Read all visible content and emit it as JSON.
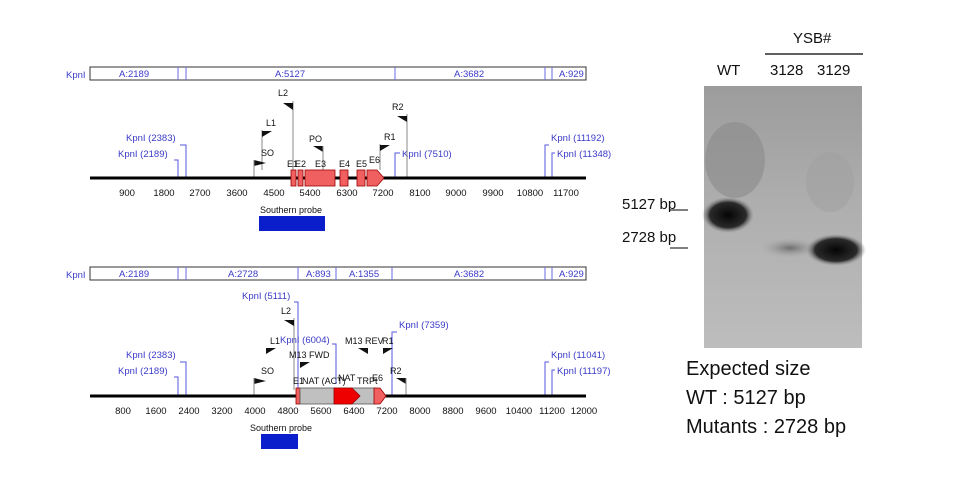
{
  "map1": {
    "restriction_bar": {
      "left_label": "KpnI",
      "segments": [
        "A:2189",
        "A:5127",
        "A:3682",
        "A:929"
      ]
    },
    "sites": [
      {
        "label": "KpnI (2383)"
      },
      {
        "label": "KpnI (2189)"
      },
      {
        "label": "KpnI (7510)"
      },
      {
        "label": "KpnI (11192)"
      },
      {
        "label": "KpnI (11348)"
      }
    ],
    "primers": [
      "L2",
      "L1",
      "PO",
      "R2",
      "R1",
      "SO"
    ],
    "exons": [
      "E1",
      "E2",
      "E3",
      "E4",
      "E5",
      "E6"
    ],
    "ticks": [
      "900",
      "1800",
      "2700",
      "3600",
      "4500",
      "5400",
      "6300",
      "7200",
      "8100",
      "9000",
      "9900",
      "10800",
      "11700"
    ],
    "probe_label": "Southern probe"
  },
  "map2": {
    "restriction_bar": {
      "left_label": "KpnI",
      "segments": [
        "A:2189",
        "A:2728",
        "A:893",
        "A:1355",
        "A:3682",
        "A:929"
      ]
    },
    "sites": [
      {
        "label": "KpnI (5111)"
      },
      {
        "label": "KpnI (6004)"
      },
      {
        "label": "KpnI (7359)"
      },
      {
        "label": "KpnI (2383)"
      },
      {
        "label": "KpnI (2189)"
      },
      {
        "label": "KpnI (11041)"
      },
      {
        "label": "KpnI (11197)"
      }
    ],
    "primers": [
      "L2",
      "L1",
      "M13 FWD",
      "M13 REV",
      "R1",
      "SO",
      "R2"
    ],
    "features": [
      "E1",
      "NAT (ACT)",
      "NAT",
      "TRPt",
      "E6"
    ],
    "ticks": [
      "800",
      "1600",
      "2400",
      "3200",
      "4000",
      "4800",
      "5600",
      "6400",
      "7200",
      "8000",
      "8800",
      "9600",
      "10400",
      "11200",
      "12000"
    ],
    "probe_label": "Southern probe"
  },
  "gel": {
    "group_label": "YSB#",
    "lanes": [
      "WT",
      "3128",
      "3129"
    ],
    "markers": [
      "5127 bp",
      "2728 bp"
    ]
  },
  "expected": {
    "title": "Expected size",
    "wt_line": "WT : 5127 bp",
    "mut_line": "Mutants : 2728 bp"
  },
  "colors": {
    "exon": "#f06060",
    "probe": "#0a1ecc",
    "site_line": "#5555dd",
    "nat_cassette": "#c0c0c0",
    "nat_arrow": "#ee0000"
  }
}
